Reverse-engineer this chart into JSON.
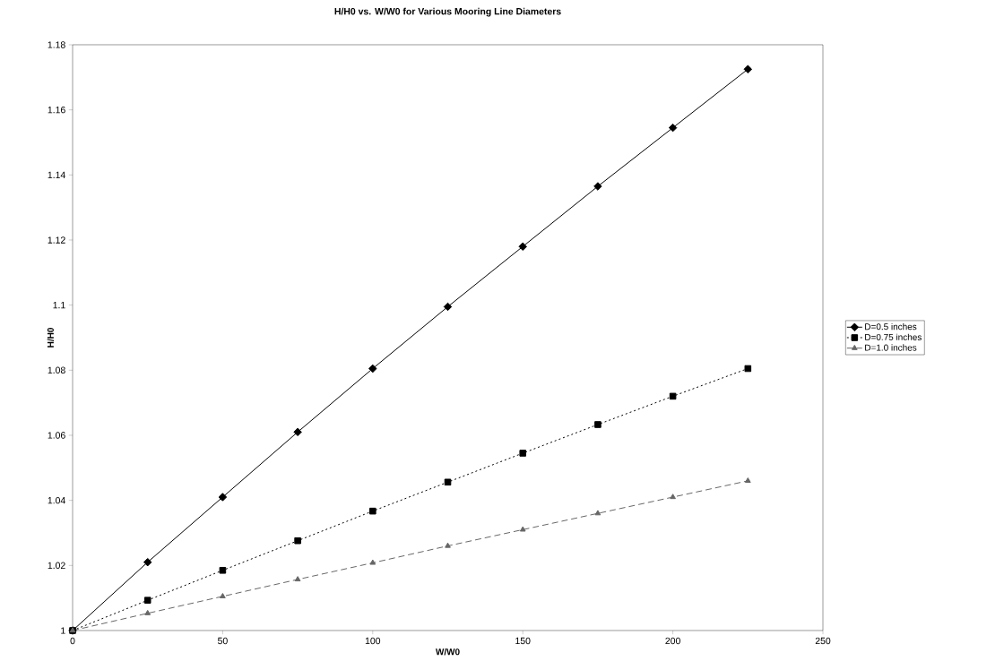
{
  "chart_data": {
    "type": "line",
    "title": "H/H0 vs. W/W0 for Various Mooring Line Diameters",
    "xlabel": "W/W0",
    "ylabel": "H/H0",
    "x": [
      0,
      25,
      50,
      75,
      100,
      125,
      150,
      175,
      200,
      225
    ],
    "series": [
      {
        "name": "D=0.5 inches",
        "color": "#000000",
        "marker": "diamond",
        "line_style": "solid",
        "values": [
          1,
          1.021,
          1.041,
          1.061,
          1.0805,
          1.0995,
          1.118,
          1.1365,
          1.1545,
          1.1725
        ]
      },
      {
        "name": "D=0.75 inches",
        "color": "#000000",
        "marker": "square",
        "line_style": "dotted",
        "values": [
          1,
          1.0093,
          1.0185,
          1.0276,
          1.0367,
          1.0456,
          1.0545,
          1.0633,
          1.072,
          1.0805
        ]
      },
      {
        "name": "D=1.0 inches",
        "color": "#666666",
        "marker": "triangle",
        "line_style": "dashed",
        "values": [
          1,
          1.0053,
          1.0105,
          1.0157,
          1.0208,
          1.026,
          1.031,
          1.036,
          1.041,
          1.046
        ]
      }
    ],
    "xlim": [
      0,
      250
    ],
    "xticks": [
      0,
      50,
      100,
      150,
      200,
      250
    ],
    "ylim": [
      1,
      1.18
    ],
    "yticks": [
      1,
      1.02,
      1.04,
      1.06,
      1.08,
      1.1,
      1.12,
      1.14,
      1.16,
      1.18
    ],
    "grid": false,
    "legend": "right"
  }
}
